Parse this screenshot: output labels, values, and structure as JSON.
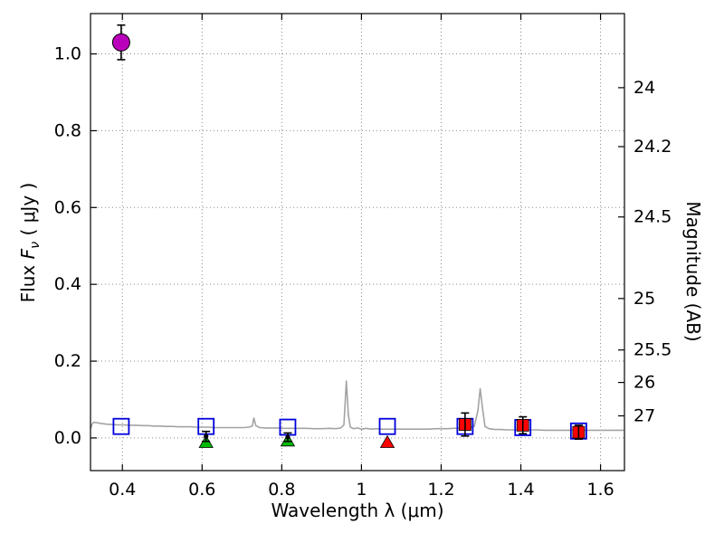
{
  "figure": {
    "xlabel": "Wavelength  λ (μm)",
    "ylabel_left": {
      "prefix": "Flux  ",
      "symbol": "F",
      "subscript": "ν",
      "suffix": "  ( μJy )"
    },
    "ylabel_right": "Magnitude (AB)"
  },
  "chart_data": {
    "type": "scatter",
    "title": "",
    "xlabel": "Wavelength λ (μm)",
    "ylabel": "Flux Fν ( μJy )",
    "ylabel_right": "Magnitude (AB)",
    "xlim": [
      0.32,
      1.66
    ],
    "ylim": [
      -0.085,
      1.105
    ],
    "x_ticks": [
      0.4,
      0.6,
      0.8,
      1.0,
      1.2,
      1.4,
      1.6
    ],
    "x_tick_labels": [
      "0.4",
      "0.6",
      "0.8",
      "1",
      "1.2",
      "1.4",
      "1.6"
    ],
    "y_ticks": [
      0.0,
      0.2,
      0.4,
      0.6,
      0.8,
      1.0
    ],
    "y_tick_labels": [
      "0.0",
      "0.2",
      "0.4",
      "0.6",
      "0.8",
      "1.0"
    ],
    "right_axis": {
      "label": "Magnitude (AB)",
      "ticks": [
        24,
        24.2,
        24.5,
        25,
        25.5,
        26,
        27
      ],
      "tick_labels": [
        "24",
        "24.2",
        "24.5",
        "25",
        "25.5",
        "26",
        "27"
      ],
      "ab_zeropoint_microjansky": 23.9
    },
    "grid": {
      "style": "dotted",
      "color": "#8a8a8a"
    },
    "frame_color": "#000000",
    "spectrum": {
      "name": "model-spectrum",
      "color": "#a3a3a3",
      "points": [
        [
          0.32,
          0.024
        ],
        [
          0.324,
          0.036
        ],
        [
          0.328,
          0.041
        ],
        [
          0.335,
          0.04
        ],
        [
          0.345,
          0.038
        ],
        [
          0.36,
          0.036
        ],
        [
          0.375,
          0.035
        ],
        [
          0.39,
          0.034
        ],
        [
          0.405,
          0.034
        ],
        [
          0.42,
          0.033
        ],
        [
          0.435,
          0.033
        ],
        [
          0.45,
          0.032
        ],
        [
          0.465,
          0.032
        ],
        [
          0.48,
          0.031
        ],
        [
          0.495,
          0.031
        ],
        [
          0.51,
          0.03
        ],
        [
          0.525,
          0.03
        ],
        [
          0.54,
          0.029
        ],
        [
          0.555,
          0.029
        ],
        [
          0.57,
          0.029
        ],
        [
          0.585,
          0.028
        ],
        [
          0.6,
          0.028
        ],
        [
          0.615,
          0.028
        ],
        [
          0.63,
          0.027
        ],
        [
          0.645,
          0.027
        ],
        [
          0.66,
          0.027
        ],
        [
          0.675,
          0.027
        ],
        [
          0.69,
          0.027
        ],
        [
          0.705,
          0.027
        ],
        [
          0.718,
          0.028
        ],
        [
          0.726,
          0.031
        ],
        [
          0.73,
          0.052
        ],
        [
          0.735,
          0.032
        ],
        [
          0.745,
          0.027
        ],
        [
          0.76,
          0.026
        ],
        [
          0.775,
          0.026
        ],
        [
          0.79,
          0.026
        ],
        [
          0.805,
          0.025
        ],
        [
          0.82,
          0.025
        ],
        [
          0.84,
          0.025
        ],
        [
          0.86,
          0.025
        ],
        [
          0.88,
          0.024
        ],
        [
          0.9,
          0.024
        ],
        [
          0.92,
          0.025
        ],
        [
          0.935,
          0.024
        ],
        [
          0.948,
          0.026
        ],
        [
          0.956,
          0.034
        ],
        [
          0.962,
          0.148
        ],
        [
          0.967,
          0.06
        ],
        [
          0.972,
          0.028
        ],
        [
          0.98,
          0.024
        ],
        [
          0.99,
          0.026
        ],
        [
          1.0,
          0.023
        ],
        [
          1.012,
          0.025
        ],
        [
          1.024,
          0.023
        ],
        [
          1.038,
          0.024
        ],
        [
          1.052,
          0.023
        ],
        [
          1.066,
          0.023
        ],
        [
          1.08,
          0.023
        ],
        [
          1.095,
          0.023
        ],
        [
          1.11,
          0.023
        ],
        [
          1.125,
          0.023
        ],
        [
          1.14,
          0.023
        ],
        [
          1.155,
          0.023
        ],
        [
          1.17,
          0.023
        ],
        [
          1.185,
          0.024
        ],
        [
          1.2,
          0.024
        ],
        [
          1.215,
          0.024
        ],
        [
          1.23,
          0.025
        ],
        [
          1.245,
          0.025
        ],
        [
          1.26,
          0.026
        ],
        [
          1.272,
          0.027
        ],
        [
          1.283,
          0.03
        ],
        [
          1.292,
          0.07
        ],
        [
          1.298,
          0.128
        ],
        [
          1.304,
          0.075
        ],
        [
          1.31,
          0.03
        ],
        [
          1.32,
          0.024
        ],
        [
          1.335,
          0.022
        ],
        [
          1.35,
          0.022
        ],
        [
          1.365,
          0.021
        ],
        [
          1.38,
          0.021
        ],
        [
          1.4,
          0.021
        ],
        [
          1.42,
          0.021
        ],
        [
          1.44,
          0.021
        ],
        [
          1.46,
          0.02
        ],
        [
          1.48,
          0.02
        ],
        [
          1.5,
          0.02
        ],
        [
          1.52,
          0.02
        ],
        [
          1.54,
          0.02
        ],
        [
          1.56,
          0.02
        ],
        [
          1.58,
          0.02
        ],
        [
          1.6,
          0.02
        ],
        [
          1.62,
          0.02
        ],
        [
          1.64,
          0.02
        ],
        [
          1.658,
          0.02
        ]
      ]
    },
    "series": [
      {
        "name": "blue-open-squares",
        "marker": "open-square",
        "color": "#0000dd",
        "points": [
          {
            "x": 0.397,
            "y": 0.03
          },
          {
            "x": 0.61,
            "y": 0.03
          },
          {
            "x": 0.815,
            "y": 0.028
          },
          {
            "x": 1.065,
            "y": 0.03
          },
          {
            "x": 1.26,
            "y": 0.03
          },
          {
            "x": 1.405,
            "y": 0.027
          },
          {
            "x": 1.545,
            "y": 0.018
          }
        ]
      },
      {
        "name": "green-triangles",
        "marker": "triangle-up",
        "color": "#00bb00",
        "points": [
          {
            "x": 0.61,
            "y": -0.012
          },
          {
            "x": 0.815,
            "y": -0.008
          }
        ]
      },
      {
        "name": "black-dots",
        "marker": "dot",
        "color": "#000000",
        "points": [
          {
            "x": 0.61,
            "y": 0.004,
            "yerr": 0.013
          },
          {
            "x": 0.815,
            "y": 0.002,
            "yerr": 0.011
          }
        ]
      },
      {
        "name": "red-triangle",
        "marker": "triangle-up",
        "color": "#ff0000",
        "points": [
          {
            "x": 1.065,
            "y": -0.012
          }
        ]
      },
      {
        "name": "red-squares",
        "marker": "square",
        "color": "#ff0000",
        "points": [
          {
            "x": 1.26,
            "y": 0.035,
            "yerr": 0.03
          },
          {
            "x": 1.405,
            "y": 0.033,
            "yerr": 0.022
          },
          {
            "x": 1.545,
            "y": 0.015,
            "yerr": 0.018
          }
        ]
      },
      {
        "name": "magenta-circle",
        "marker": "circle",
        "color": "#bb00bb",
        "points": [
          {
            "x": 0.397,
            "y": 1.03,
            "yerr": 0.045
          }
        ]
      }
    ]
  }
}
